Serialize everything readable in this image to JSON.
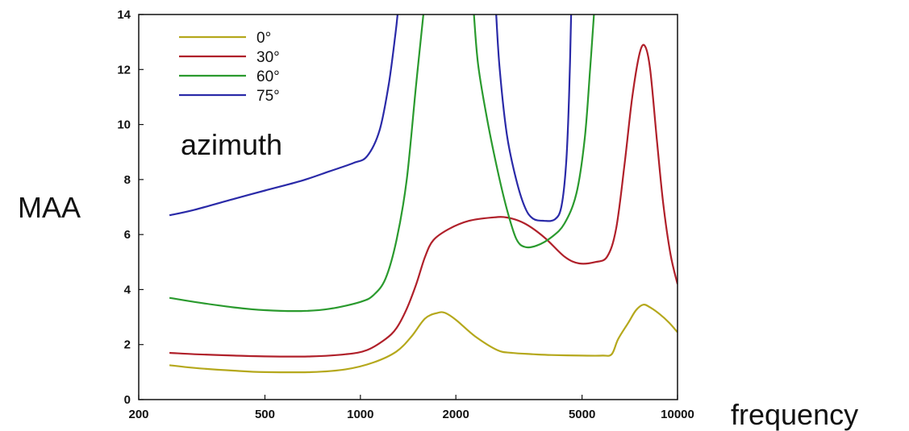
{
  "chart_data": {
    "type": "line",
    "xlabel": "frequency",
    "ylabel": "MAA",
    "x_scale": "log",
    "xlim": [
      200,
      10000
    ],
    "ylim": [
      0,
      14
    ],
    "x_ticks": [
      200,
      500,
      1000,
      2000,
      5000,
      10000
    ],
    "x_tick_labels": [
      "200",
      "500",
      "1000",
      "2000",
      "5000",
      "10000"
    ],
    "y_ticks": [
      0,
      2,
      4,
      6,
      8,
      10,
      12,
      14
    ],
    "y_tick_labels": [
      "0",
      "2",
      "4",
      "6",
      "8",
      "10",
      "12",
      "14"
    ],
    "grid": false,
    "legend_position": "top-left",
    "legend_title": "azimuth",
    "series": [
      {
        "name": "0°",
        "color": "#b5a81c",
        "points": [
          [
            250,
            1.25
          ],
          [
            300,
            1.15
          ],
          [
            400,
            1.05
          ],
          [
            500,
            1.0
          ],
          [
            700,
            1.0
          ],
          [
            900,
            1.1
          ],
          [
            1100,
            1.35
          ],
          [
            1300,
            1.75
          ],
          [
            1450,
            2.3
          ],
          [
            1600,
            2.95
          ],
          [
            1750,
            3.15
          ],
          [
            1850,
            3.15
          ],
          [
            2000,
            2.9
          ],
          [
            2300,
            2.3
          ],
          [
            2700,
            1.8
          ],
          [
            3000,
            1.7
          ],
          [
            3500,
            1.65
          ],
          [
            4000,
            1.62
          ],
          [
            5000,
            1.6
          ],
          [
            5800,
            1.6
          ],
          [
            6200,
            1.65
          ],
          [
            6500,
            2.2
          ],
          [
            7000,
            2.8
          ],
          [
            7400,
            3.25
          ],
          [
            7800,
            3.45
          ],
          [
            8200,
            3.35
          ],
          [
            8800,
            3.1
          ],
          [
            9400,
            2.8
          ],
          [
            10000,
            2.45
          ]
        ]
      },
      {
        "name": "30°",
        "color": "#b0202a",
        "points": [
          [
            250,
            1.7
          ],
          [
            300,
            1.65
          ],
          [
            400,
            1.6
          ],
          [
            500,
            1.57
          ],
          [
            700,
            1.57
          ],
          [
            900,
            1.65
          ],
          [
            1050,
            1.8
          ],
          [
            1200,
            2.2
          ],
          [
            1300,
            2.6
          ],
          [
            1400,
            3.3
          ],
          [
            1500,
            4.2
          ],
          [
            1600,
            5.2
          ],
          [
            1700,
            5.8
          ],
          [
            1900,
            6.2
          ],
          [
            2200,
            6.5
          ],
          [
            2600,
            6.62
          ],
          [
            2900,
            6.62
          ],
          [
            3300,
            6.4
          ],
          [
            3800,
            5.9
          ],
          [
            4400,
            5.2
          ],
          [
            4900,
            4.95
          ],
          [
            5500,
            5.0
          ],
          [
            6000,
            5.2
          ],
          [
            6400,
            6.2
          ],
          [
            6800,
            8.5
          ],
          [
            7200,
            11.0
          ],
          [
            7600,
            12.6
          ],
          [
            7900,
            12.85
          ],
          [
            8200,
            12.0
          ],
          [
            8600,
            9.5
          ],
          [
            9000,
            7.2
          ],
          [
            9500,
            5.3
          ],
          [
            10000,
            4.2
          ]
        ]
      },
      {
        "name": "60°",
        "color": "#2a9a2e",
        "points": [
          [
            250,
            3.7
          ],
          [
            300,
            3.55
          ],
          [
            400,
            3.35
          ],
          [
            500,
            3.25
          ],
          [
            650,
            3.22
          ],
          [
            800,
            3.3
          ],
          [
            1000,
            3.55
          ],
          [
            1100,
            3.8
          ],
          [
            1200,
            4.4
          ],
          [
            1300,
            5.8
          ],
          [
            1400,
            8.0
          ],
          [
            1500,
            11.5
          ],
          [
            1580,
            14.0
          ]
        ]
      },
      {
        "name": "60°",
        "color": "#2a9a2e",
        "points": [
          [
            2280,
            14.0
          ],
          [
            2350,
            12.2
          ],
          [
            2500,
            10.3
          ],
          [
            2700,
            8.4
          ],
          [
            2900,
            6.9
          ],
          [
            3100,
            5.85
          ],
          [
            3300,
            5.55
          ],
          [
            3600,
            5.6
          ],
          [
            4000,
            5.9
          ],
          [
            4400,
            6.4
          ],
          [
            4800,
            7.5
          ],
          [
            5100,
            9.5
          ],
          [
            5300,
            12.0
          ],
          [
            5450,
            14.0
          ]
        ]
      },
      {
        "name": "75°",
        "color": "#2a2aa8",
        "points": [
          [
            250,
            6.7
          ],
          [
            300,
            6.9
          ],
          [
            400,
            7.3
          ],
          [
            500,
            7.6
          ],
          [
            650,
            7.95
          ],
          [
            800,
            8.3
          ],
          [
            950,
            8.6
          ],
          [
            1050,
            8.85
          ],
          [
            1150,
            9.8
          ],
          [
            1230,
            11.5
          ],
          [
            1290,
            13.3
          ],
          [
            1310,
            14.0
          ]
        ]
      },
      {
        "name": "75°",
        "color": "#2a2aa8",
        "points": [
          [
            2680,
            14.0
          ],
          [
            2750,
            12.0
          ],
          [
            2900,
            9.6
          ],
          [
            3100,
            8.0
          ],
          [
            3300,
            7.0
          ],
          [
            3500,
            6.58
          ],
          [
            3800,
            6.5
          ],
          [
            4100,
            6.55
          ],
          [
            4300,
            7.0
          ],
          [
            4450,
            8.5
          ],
          [
            4550,
            11.0
          ],
          [
            4620,
            14.0
          ]
        ]
      }
    ]
  },
  "legend_items": [
    {
      "label": "0°",
      "color": "#b5a81c"
    },
    {
      "label": "30°",
      "color": "#b0202a"
    },
    {
      "label": "60°",
      "color": "#2a9a2e"
    },
    {
      "label": "75°",
      "color": "#2a2aa8"
    }
  ]
}
